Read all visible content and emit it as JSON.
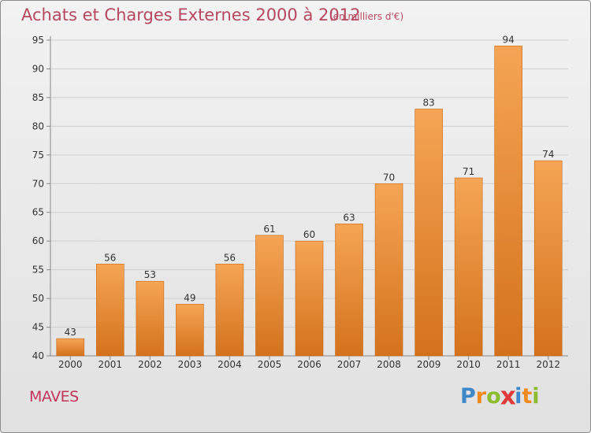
{
  "header": {
    "title": "Achats et Charges Externes 2000 à 2012",
    "unit": "(en milliers d'€)"
  },
  "footer": {
    "region": "MAVES",
    "brand": "Proxiti",
    "brand_letters": [
      {
        "ch": "P",
        "color": "#3e88c9"
      },
      {
        "ch": "r",
        "color": "#f08a1c"
      },
      {
        "ch": "o",
        "color": "#8cbd2c"
      },
      {
        "ch": "x",
        "color": "#e03a3a"
      },
      {
        "ch": "i",
        "color": "#3e88c9"
      },
      {
        "ch": "t",
        "color": "#f08a1c"
      },
      {
        "ch": "i",
        "color": "#8cbd2c"
      }
    ]
  },
  "chart_data": {
    "type": "bar",
    "title": "Achats et Charges Externes 2000 à 2012",
    "subtitle": "(en milliers d'€)",
    "categories": [
      "2000",
      "2001",
      "2002",
      "2003",
      "2004",
      "2005",
      "2006",
      "2007",
      "2008",
      "2009",
      "2010",
      "2011",
      "2012"
    ],
    "values": [
      43,
      56,
      53,
      49,
      56,
      61,
      60,
      63,
      70,
      83,
      71,
      94,
      74
    ],
    "ylim": [
      40,
      95
    ],
    "yticks": [
      40,
      45,
      50,
      55,
      60,
      65,
      70,
      75,
      80,
      85,
      90,
      95
    ],
    "grid": true,
    "bar_color_top": "#f5a555",
    "bar_color_bottom": "#d4721c",
    "title_color": "#b5485f"
  }
}
